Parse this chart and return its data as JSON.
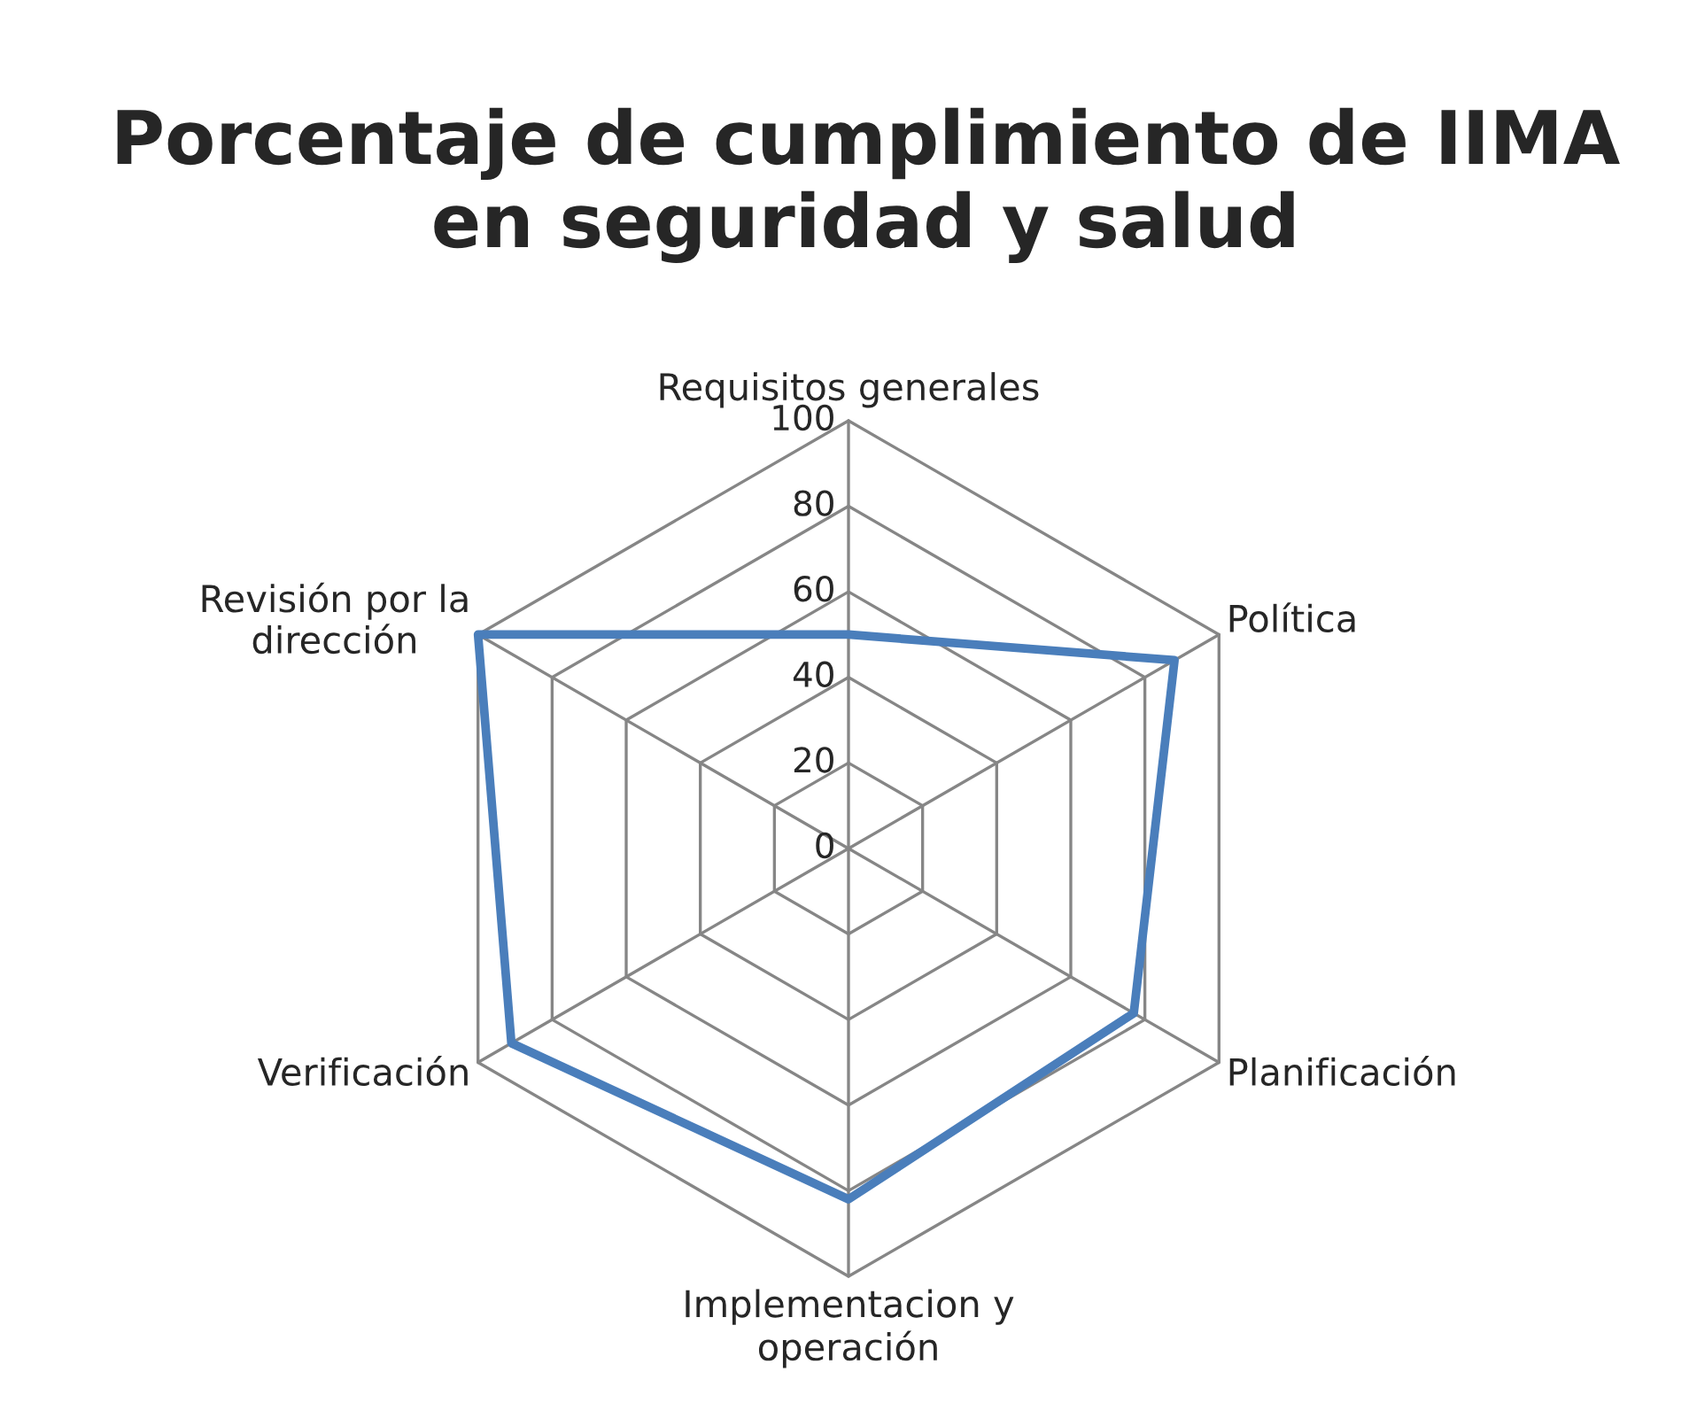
{
  "chart_data": {
    "type": "radar",
    "title": "Porcentaje de cumplimiento de IIMA\nen seguridad y salud",
    "categories": [
      "Requisitos generales",
      "Política",
      "Planificación",
      "Implementacion y\noperación",
      "Verificación",
      "Revisión por la\ndirección"
    ],
    "series": [
      {
        "color": "#4a7ebb",
        "values": [
          50,
          88,
          77,
          82,
          91,
          100
        ]
      }
    ],
    "ylim": [
      0,
      100
    ],
    "yticks": [
      0,
      20,
      40,
      60,
      80,
      100
    ],
    "grid": true,
    "marker": "none",
    "line_style": "solid",
    "legend": false
  }
}
